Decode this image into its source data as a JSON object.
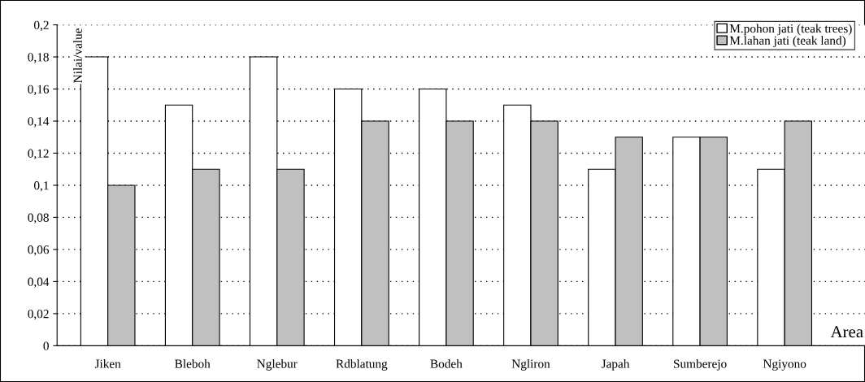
{
  "chart_data": {
    "type": "bar",
    "xlabel": "Area",
    "ylabel": "Nilai/value",
    "categories": [
      "Jiken",
      "Bleboh",
      "Nglebur",
      "Rdblatung",
      "Bodeh",
      "Ngliron",
      "Japah",
      "Sumberejo",
      "Ngiyono"
    ],
    "series": [
      {
        "name": "M.pohon jati (teak trees)",
        "color": "#ffffff",
        "values": [
          0.18,
          0.15,
          0.18,
          0.16,
          0.16,
          0.15,
          0.11,
          0.13,
          0.11
        ]
      },
      {
        "name": "M.lahan jati (teak land)",
        "color": "#c0c0c0",
        "values": [
          0.1,
          0.11,
          0.11,
          0.14,
          0.14,
          0.14,
          0.13,
          0.13,
          0.14
        ]
      }
    ],
    "ylim": [
      0,
      0.2
    ],
    "yticks": [
      0,
      {
        "value": 0.02,
        "label": "0,02"
      },
      {
        "value": 0.04,
        "label": "0,04"
      },
      {
        "value": 0.06,
        "label": "0,06"
      },
      {
        "value": 0.08,
        "label": "0,08"
      },
      {
        "value": 0.1,
        "label": "0,1"
      },
      {
        "value": 0.12,
        "label": "0,12"
      },
      {
        "value": 0.14,
        "label": "0,14"
      },
      {
        "value": 0.16,
        "label": "0,16"
      },
      {
        "value": 0.18,
        "label": "0,18"
      },
      {
        "value": 0.2,
        "label": "0,2"
      }
    ],
    "grid": "y",
    "line_style": "dotted",
    "legend": "top right"
  }
}
